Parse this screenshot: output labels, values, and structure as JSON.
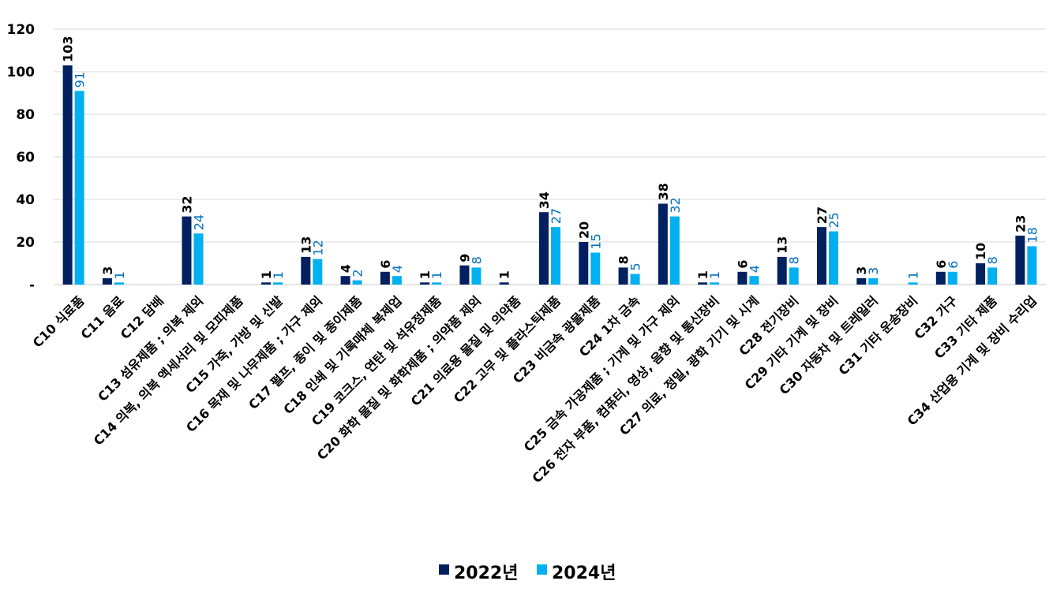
{
  "chart_data": {
    "type": "bar",
    "title": "",
    "xlabel": "",
    "ylabel": "",
    "ylim": [
      0,
      120
    ],
    "yticks": [
      0,
      20,
      40,
      60,
      80,
      100,
      120
    ],
    "ytick_labels": [
      "-",
      "20",
      "40",
      "60",
      "80",
      "100",
      "120"
    ],
    "grid": true,
    "legend_position": "bottom",
    "categories": [
      "C10 식료품",
      "C11 음료",
      "C12 담배",
      "C13 섬유제품 ; 의복 제외",
      "C14 의복, 의복 액세서리 및 모피제품",
      "C15 가죽, 가방 및 신발",
      "C16 목재 및 나무제품 ; 가구 제외",
      "C17 펄프, 종이 및 종이제품",
      "C18 인쇄 및 기록매체 복제업",
      "C19 코크스, 연탄 및 석유정제품",
      "C20 화학 물질 및 화학제품 ; 의약품 제외",
      "C21 의료용 물질 및 의약품",
      "C22 고무 및 플라스틱제품",
      "C23 비금속 광물제품",
      "C24 1차 금속",
      "C25 금속 가공제품 ; 기계 및 가구 제외",
      "C26 전자 부품, 컴퓨터, 영상, 음향 및 통신장비",
      "C27 의료, 정밀, 광학 기기 및 시계",
      "C28 전기장비",
      "C29 기타 기계 및 장비",
      "C30 자동차 및 트레일러",
      "C31 기타 운송장비",
      "C32 가구",
      "C33 기타 제품",
      "C34 산업용 기계 및 장비 수리업"
    ],
    "series": [
      {
        "name": "2022년",
        "color": "#002060",
        "label_color": "#000000",
        "values": [
          103,
          3,
          null,
          32,
          null,
          1,
          13,
          4,
          6,
          1,
          9,
          1,
          34,
          20,
          8,
          38,
          1,
          6,
          13,
          27,
          3,
          null,
          6,
          10,
          23
        ]
      },
      {
        "name": "2024년",
        "color": "#00B0F0",
        "label_color": "#0070C0",
        "values": [
          91,
          1,
          null,
          24,
          null,
          1,
          12,
          2,
          4,
          1,
          8,
          null,
          27,
          15,
          5,
          32,
          1,
          4,
          8,
          25,
          3,
          1,
          6,
          8,
          18
        ]
      }
    ]
  }
}
